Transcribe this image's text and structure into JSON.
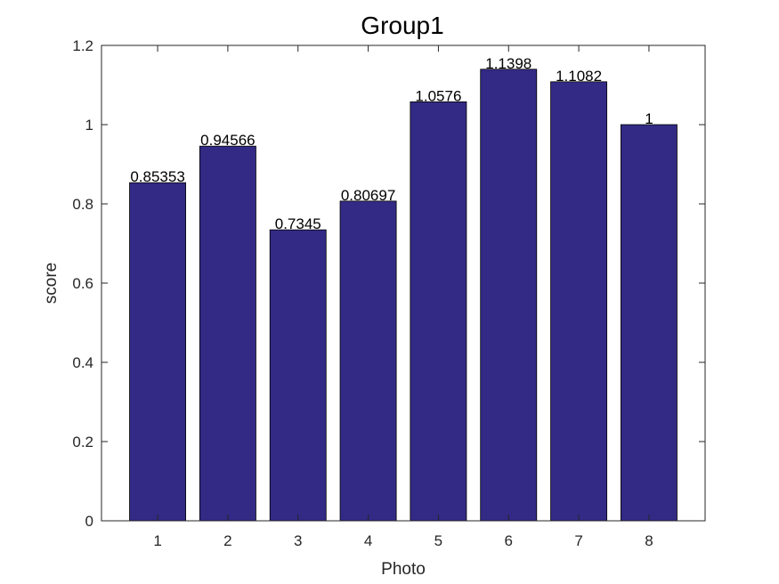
{
  "chart_data": {
    "type": "bar",
    "title": "Group1",
    "xlabel": "Photo",
    "ylabel": "score",
    "categories": [
      "1",
      "2",
      "3",
      "4",
      "5",
      "6",
      "7",
      "8"
    ],
    "values": [
      0.85353,
      0.94566,
      0.7345,
      0.80697,
      1.0576,
      1.1398,
      1.1082,
      1
    ],
    "data_labels": [
      "0.85353",
      "0.94566",
      "0.7345",
      "0.80697",
      "1.0576",
      "1.1398",
      "1.1082",
      "1"
    ],
    "ylim": [
      0,
      1.2
    ],
    "yticks": [
      0,
      0.2,
      0.4,
      0.6,
      0.8,
      1,
      1.2
    ],
    "ytick_labels": [
      "0",
      "0.2",
      "0.4",
      "0.6",
      "0.8",
      "1",
      "1.2"
    ],
    "grid": false,
    "bar_color": "#332a85",
    "bar_edge_color": "#000000",
    "axis_color": "#262626"
  }
}
